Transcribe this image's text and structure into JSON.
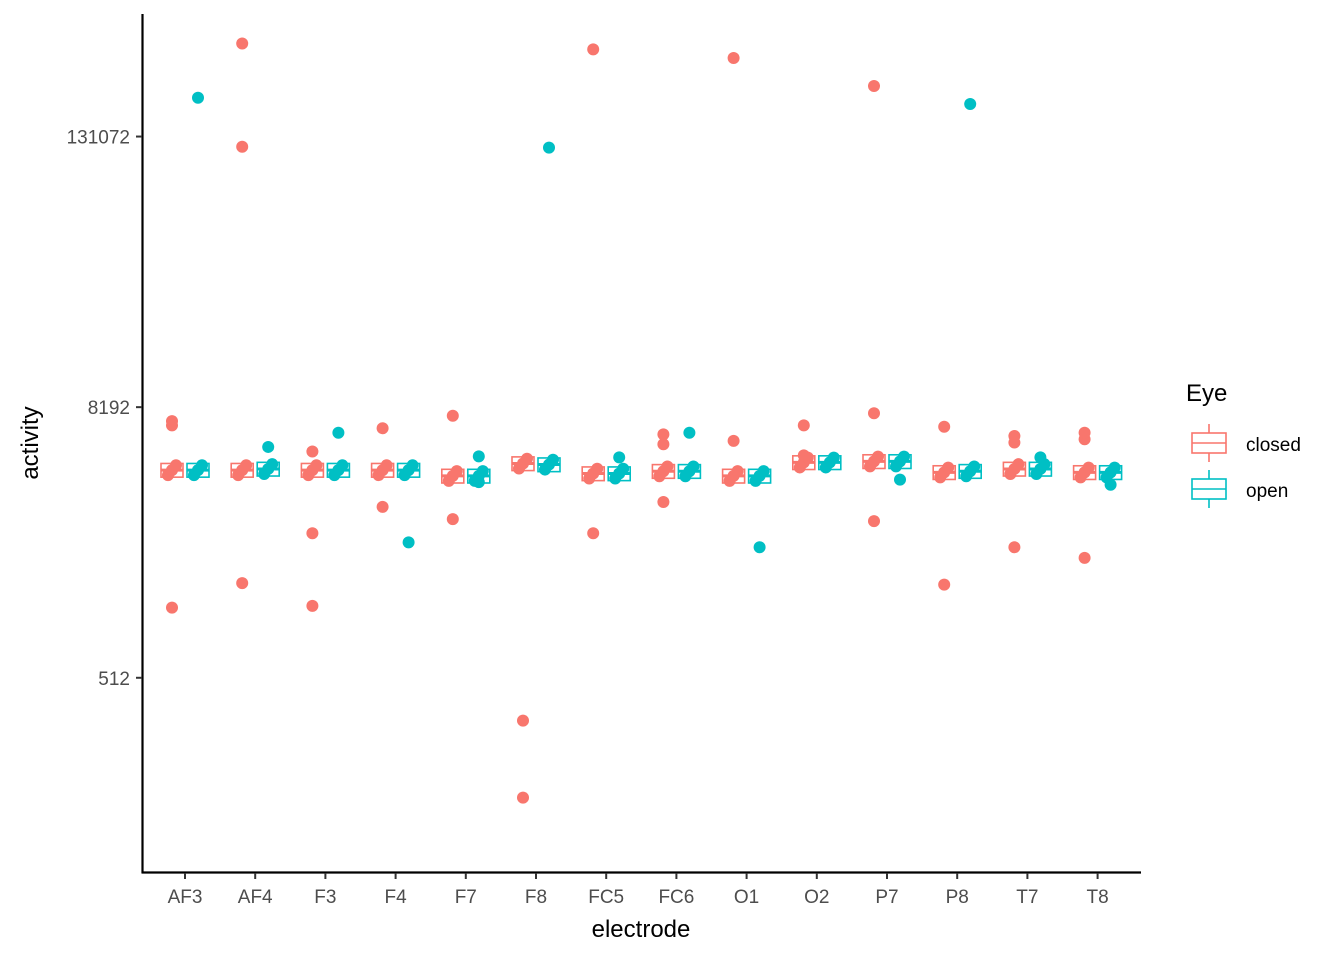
{
  "chart_data": {
    "type": "boxplot",
    "title": "",
    "xlabel": "electrode",
    "ylabel": "activity",
    "y_scale": "log2",
    "y_ticks": [
      512,
      8192,
      131072
    ],
    "y_tick_labels": [
      "512",
      "8192",
      "131072"
    ],
    "ylim": [
      70,
      460000
    ],
    "categories": [
      "AF3",
      "AF4",
      "F3",
      "F4",
      "F7",
      "F8",
      "FC5",
      "FC6",
      "O1",
      "O2",
      "P7",
      "P8",
      "T7",
      "T8"
    ],
    "legend": {
      "title": "Eye",
      "position": "right",
      "entries": [
        {
          "label": "closed",
          "color": "#F8766D"
        },
        {
          "label": "open",
          "color": "#00BFC4"
        }
      ]
    },
    "grid": false,
    "series": [
      {
        "name": "closed",
        "color": "#F8766D",
        "medians": [
          4300,
          4300,
          4300,
          4300,
          4050,
          4600,
          4150,
          4250,
          4050,
          4650,
          4700,
          4200,
          4350,
          4200
        ],
        "outliers": [
          [
            7100,
            6800,
            1050
          ],
          [
            340000,
            118000,
            1350
          ],
          [
            5200,
            2250,
            1070
          ],
          [
            6600,
            2950
          ],
          [
            7500,
            2600
          ],
          [
            330,
            150
          ],
          [
            320000,
            2250
          ],
          [
            5600,
            6200,
            3100
          ],
          [
            293000,
            5800
          ],
          [
            6800,
            5000
          ],
          [
            220000,
            7700,
            2550
          ],
          [
            6700,
            1330
          ],
          [
            5700,
            6100,
            1950
          ],
          [
            5900,
            6300,
            1750
          ]
        ]
      },
      {
        "name": "open",
        "color": "#00BFC4",
        "medians": [
          4300,
          4350,
          4300,
          4300,
          4050,
          4550,
          4150,
          4250,
          4050,
          4650,
          4700,
          4250,
          4350,
          4200
        ],
        "outliers": [
          [
            195000
          ],
          [
            5450
          ],
          [
            6300
          ],
          [
            2050
          ],
          [
            4950,
            3800
          ],
          [
            117000
          ],
          [
            4900
          ],
          [
            6300
          ],
          [
            1950
          ],
          [],
          [
            3900
          ],
          [
            183000
          ],
          [
            4900
          ],
          [
            3700
          ]
        ]
      }
    ]
  }
}
